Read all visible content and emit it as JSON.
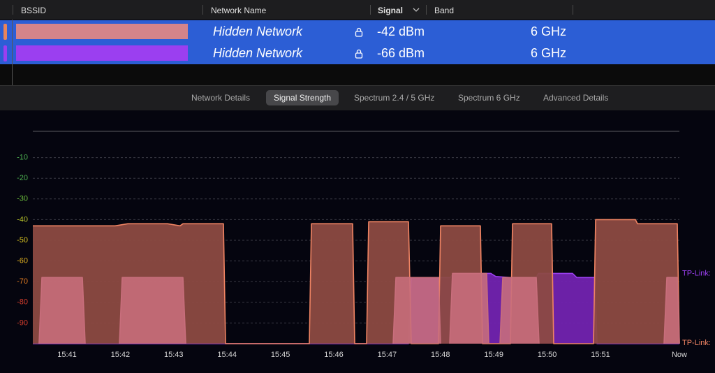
{
  "table": {
    "headers": [
      "BSSID",
      "Network Name",
      "Signal",
      "Band"
    ],
    "rows": [
      {
        "name": "Hidden Network",
        "signal": "-42 dBm",
        "band": "6 GHz",
        "indicator": "#e8845c",
        "swatch": "#d4848a"
      },
      {
        "name": "Hidden Network",
        "signal": "-66 dBm",
        "band": "6 GHz",
        "indicator": "#9b3ff0",
        "swatch": "#9b3ff0"
      }
    ]
  },
  "tabs": {
    "items": [
      "Network Details",
      "Signal Strength",
      "Spectrum 2.4 / 5 GHz",
      "Spectrum 6 GHz",
      "Advanced Details"
    ],
    "active": 1
  },
  "chart_data": {
    "type": "area",
    "ylim": [
      -100,
      0
    ],
    "yticks": [
      -10,
      -20,
      -30,
      -40,
      -50,
      -60,
      -70,
      -80,
      -90
    ],
    "ytick_colors": [
      "#4caf50",
      "#4caf50",
      "#6cbf3c",
      "#b5c02a",
      "#d9c421",
      "#e0b020",
      "#e07a20",
      "#d23c2c",
      "#d23c2c"
    ],
    "grid": true,
    "xlim": [
      0.359,
      12.479
    ],
    "xticks": [
      {
        "value": 1,
        "label": "15:41"
      },
      {
        "value": 2,
        "label": "15:42"
      },
      {
        "value": 3,
        "label": "15:43"
      },
      {
        "value": 4,
        "label": "15:44"
      },
      {
        "value": 5,
        "label": "15:45"
      },
      {
        "value": 6,
        "label": "15:46"
      },
      {
        "value": 7,
        "label": "15:47"
      },
      {
        "value": 8,
        "label": "15:48"
      },
      {
        "value": 9,
        "label": "15:49"
      },
      {
        "value": 10,
        "label": "15:50"
      },
      {
        "value": 11,
        "label": "15:51"
      },
      {
        "value": 12.479,
        "label": "Now"
      }
    ],
    "series": [
      {
        "name": "TP-Link:",
        "color": "#9b3ff0",
        "x": [
          0.359,
          7.401,
          7.453,
          8.186,
          8.238,
          8.945,
          9.037,
          9.298,
          9.796,
          9.835,
          10.476,
          10.555,
          10.895,
          10.934,
          12.479
        ],
        "values": [
          -100,
          -100,
          -68,
          -68,
          -66,
          -66,
          -67.5,
          -68,
          -68,
          -66,
          -66,
          -68,
          -68,
          -100,
          -100
        ]
      },
      {
        "name": "TP-Link:",
        "color": "#f08463",
        "x": [
          0.359,
          1.903,
          2.139,
          2.885,
          3.12,
          3.173,
          3.932,
          3.971,
          5.542,
          5.581,
          6.353,
          6.393,
          6.615,
          6.654,
          7.401,
          7.453,
          7.963,
          8.003,
          8.749,
          8.788,
          9.312,
          9.351,
          10.084,
          10.123,
          10.869,
          10.908,
          11.654,
          11.694,
          12.44,
          12.479
        ],
        "values": [
          -43,
          -43,
          -42,
          -42,
          -43,
          -42,
          -42,
          -100,
          -100,
          -42,
          -42,
          -100,
          -100,
          -41,
          -41,
          -100,
          -100,
          -43,
          -43,
          -100,
          -100,
          -42,
          -42,
          -100,
          -100,
          -40,
          -40,
          -42,
          -42,
          -100
        ]
      },
      {
        "color": "#c86e7c",
        "x": [
          0.476,
          0.529,
          1.288,
          1.34,
          1.5,
          1.982,
          2.034,
          3.173,
          3.225,
          4,
          7.113,
          7.165,
          7.963,
          8.003,
          8.1,
          8.173,
          8.225,
          8.866,
          8.906,
          9.0,
          9.115,
          9.168,
          9.796,
          9.848,
          10.5,
          12.191,
          12.243,
          12.44,
          12.479
        ],
        "values": [
          -100,
          -68,
          -68,
          -100,
          null,
          -100,
          -68,
          -68,
          -100,
          null,
          -100,
          -68,
          -68,
          -100,
          null,
          -100,
          -66,
          -66,
          -100,
          null,
          -100,
          -68,
          -68,
          -100,
          null,
          -100,
          -68,
          -68,
          -100
        ]
      }
    ]
  }
}
